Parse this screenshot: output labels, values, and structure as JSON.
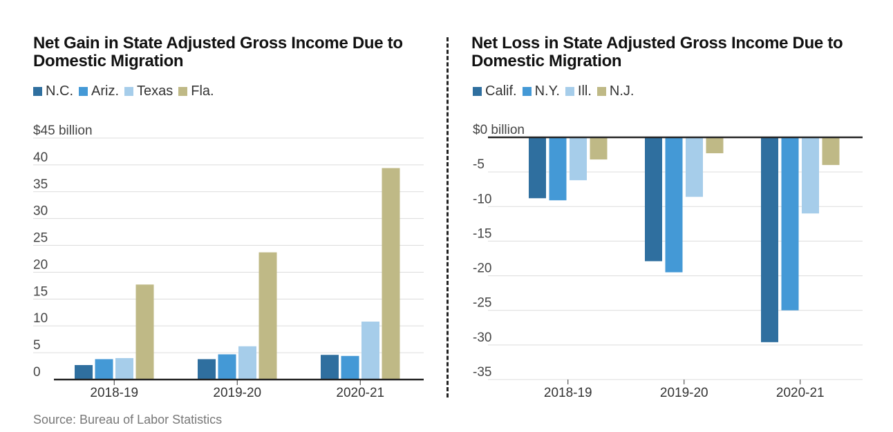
{
  "source": "Source: Bureau of Labor Statistics",
  "chart_data": [
    {
      "type": "bar",
      "title": "Net Gain in State Adjusted Gross Income Due to Domestic Migration",
      "categories": [
        "2018-19",
        "2019-20",
        "2020-21"
      ],
      "series": [
        {
          "name": "N.C.",
          "color": "#2f6f9f",
          "values": [
            2.7,
            3.8,
            4.6
          ]
        },
        {
          "name": "Ariz.",
          "color": "#4499d6",
          "values": [
            3.8,
            4.7,
            4.4
          ]
        },
        {
          "name": "Texas",
          "color": "#a6cdea",
          "values": [
            4.0,
            6.2,
            10.8
          ]
        },
        {
          "name": "Fla.",
          "color": "#bfb986",
          "values": [
            17.7,
            23.7,
            39.4
          ]
        }
      ],
      "ylim": [
        0,
        45
      ],
      "yticks": [
        0,
        5,
        10,
        15,
        20,
        25,
        30,
        35,
        40,
        45
      ],
      "ytick_labels": [
        "0",
        "5",
        "10",
        "15",
        "20",
        "25",
        "30",
        "35",
        "40",
        "$45 billion"
      ],
      "xlabel": "",
      "ylabel": "",
      "grid": true,
      "legend": "top-left"
    },
    {
      "type": "bar",
      "title": "Net Loss in State Adjusted Gross Income Due to Domestic Migration",
      "categories": [
        "2018-19",
        "2019-20",
        "2020-21"
      ],
      "series": [
        {
          "name": "Calif.",
          "color": "#2f6f9f",
          "values": [
            -8.8,
            -17.9,
            -29.6
          ]
        },
        {
          "name": "N.Y.",
          "color": "#4499d6",
          "values": [
            -9.1,
            -19.5,
            -25.0
          ]
        },
        {
          "name": "Ill.",
          "color": "#a6cdea",
          "values": [
            -6.2,
            -8.6,
            -11.0
          ]
        },
        {
          "name": "N.J.",
          "color": "#bfb986",
          "values": [
            -3.2,
            -2.3,
            -4.0
          ]
        }
      ],
      "ylim": [
        -35,
        0
      ],
      "yticks": [
        0,
        -5,
        -10,
        -15,
        -20,
        -25,
        -30,
        -35
      ],
      "ytick_labels": [
        "$0 billion",
        "-5",
        "-10",
        "-15",
        "-20",
        "-25",
        "-30",
        "-35"
      ],
      "xlabel": "",
      "ylabel": "",
      "grid": true,
      "legend": "top-left"
    }
  ]
}
